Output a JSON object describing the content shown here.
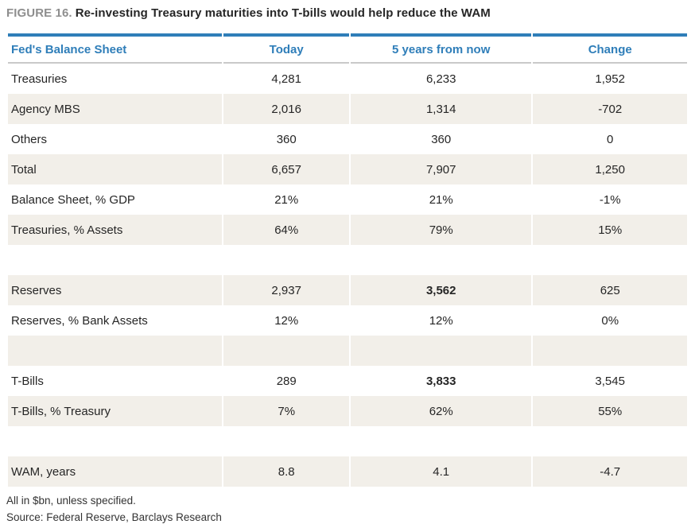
{
  "title": {
    "figure_label": "FIGURE 16.",
    "text": "Re-investing Treasury maturities into T-bills would help reduce the WAM"
  },
  "colors": {
    "accent_blue": "#2f7eb9",
    "row_beige": "#f2efe9",
    "figure_label_gray": "#8e8e8e"
  },
  "table": {
    "columns": [
      "Fed's Balance Sheet",
      "Today",
      "5 years from now",
      "Change"
    ],
    "rows": [
      {
        "label": "Treasuries",
        "today": "4,281",
        "future": "6,233",
        "change": "1,952"
      },
      {
        "label": "Agency MBS",
        "today": "2,016",
        "future": "1,314",
        "change": "-702"
      },
      {
        "label": "Others",
        "today": "360",
        "future": "360",
        "change": "0"
      },
      {
        "label": "Total",
        "today": "6,657",
        "future": "7,907",
        "change": "1,250"
      },
      {
        "label": "Balance Sheet, % GDP",
        "today": "21%",
        "future": "21%",
        "change": "-1%"
      },
      {
        "label": "Treasuries, % Assets",
        "today": "64%",
        "future": "79%",
        "change": "15%"
      },
      {
        "label": "",
        "today": "",
        "future": "",
        "change": ""
      },
      {
        "label": "Reserves",
        "today": "2,937",
        "future": "3,562",
        "change": "625"
      },
      {
        "label": "Reserves, % Bank Assets",
        "today": "12%",
        "future": "12%",
        "change": "0%"
      },
      {
        "label": "",
        "today": "",
        "future": "",
        "change": ""
      },
      {
        "label": "T-Bills",
        "today": "289",
        "future": "3,833",
        "change": "3,545"
      },
      {
        "label": "T-Bills, % Treasury",
        "today": "7%",
        "future": "62%",
        "change": "55%"
      },
      {
        "label": "",
        "today": "",
        "future": "",
        "change": ""
      },
      {
        "label": "WAM, years",
        "today": "8.8",
        "future": "4.1",
        "change": "-4.7"
      }
    ]
  },
  "footnotes": {
    "units": "All in $bn, unless specified.",
    "source": "Source: Federal Reserve, Barclays Research"
  },
  "chart_data": {
    "type": "table",
    "title": "Re-investing Treasury maturities into T-bills would help reduce the WAM",
    "columns": [
      "Fed's Balance Sheet",
      "Today",
      "5 years from now",
      "Change"
    ],
    "rows": [
      [
        "Treasuries",
        4281,
        6233,
        1952
      ],
      [
        "Agency MBS",
        2016,
        1314,
        -702
      ],
      [
        "Others",
        360,
        360,
        0
      ],
      [
        "Total",
        6657,
        7907,
        1250
      ],
      [
        "Balance Sheet, % GDP",
        "21%",
        "21%",
        "-1%"
      ],
      [
        "Treasuries, % Assets",
        "64%",
        "79%",
        "15%"
      ],
      [
        "Reserves",
        2937,
        3562,
        625
      ],
      [
        "Reserves, % Bank Assets",
        "12%",
        "12%",
        "0%"
      ],
      [
        "T-Bills",
        289,
        3833,
        3545
      ],
      [
        "T-Bills, % Treasury",
        "7%",
        "62%",
        "55%"
      ],
      [
        "WAM, years",
        8.8,
        4.1,
        -4.7
      ]
    ]
  }
}
